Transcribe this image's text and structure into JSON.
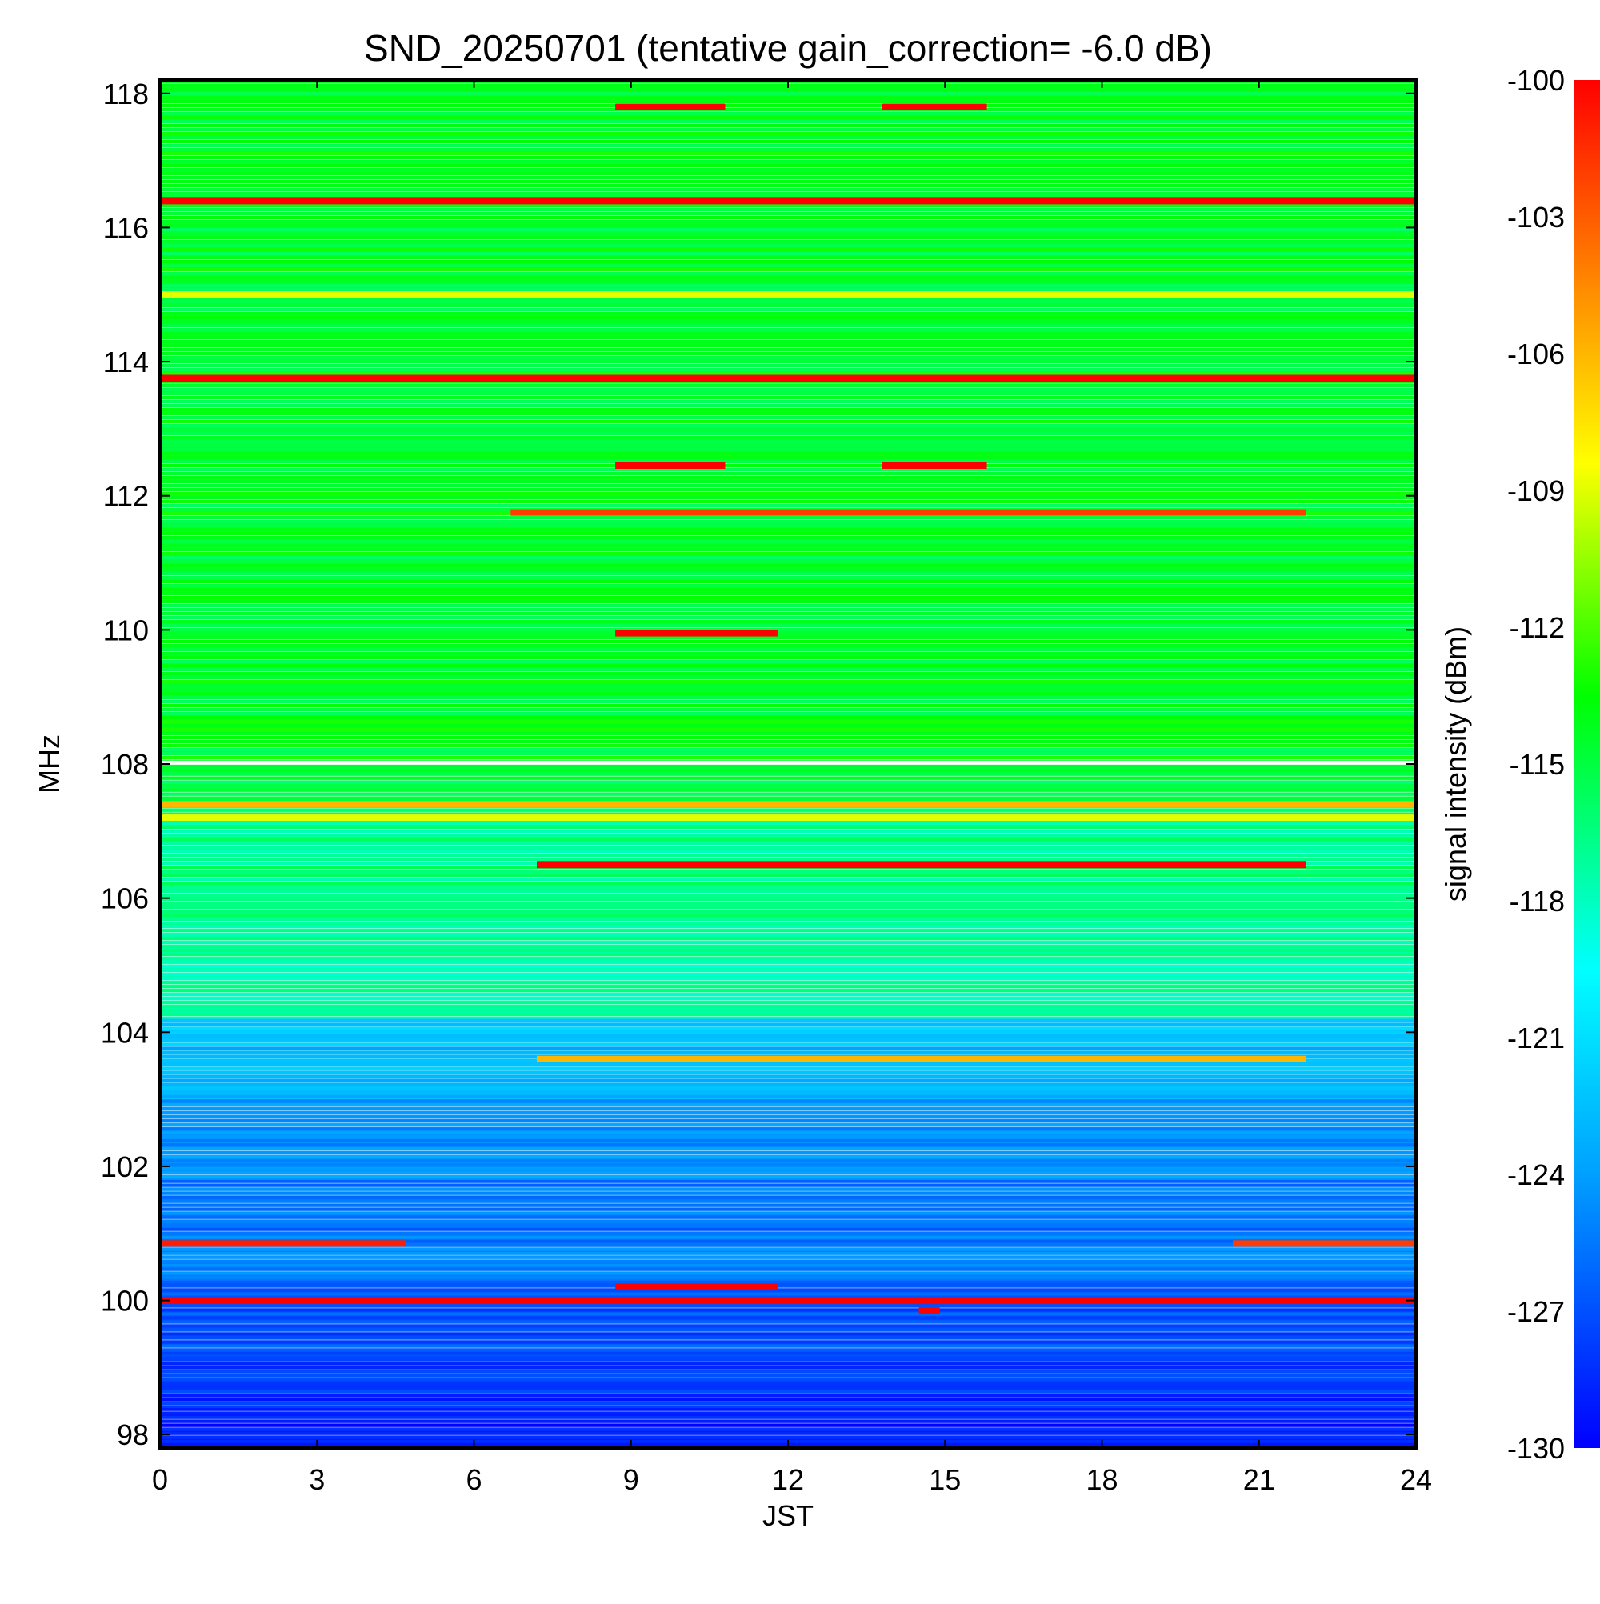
{
  "chart_data": {
    "type": "heatmap",
    "title": "SND_20250701 (tentative gain_correction= -6.0 dB)",
    "xlabel": "JST",
    "ylabel": "MHz",
    "xlim": [
      0,
      24
    ],
    "ylim": [
      97.8,
      118.2
    ],
    "x_ticks": [
      0,
      3,
      6,
      9,
      12,
      15,
      18,
      21,
      24
    ],
    "y_ticks": [
      98,
      100,
      102,
      104,
      106,
      108,
      110,
      112,
      114,
      116,
      118
    ],
    "colorbar": {
      "label": "signal intensity (dBm)",
      "range": [
        -130,
        -100
      ],
      "ticks": [
        -100,
        -103,
        -106,
        -109,
        -112,
        -115,
        -118,
        -121,
        -124,
        -127,
        -130
      ],
      "colormap": [
        "#0000ff",
        "#00a0ff",
        "#00ffff",
        "#00ff00",
        "#ffff00",
        "#ff8000",
        "#ff0000"
      ]
    },
    "background_bands": [
      {
        "freq_range": [
          108.05,
          118.2
        ],
        "level_dBm": -114.5
      },
      {
        "freq_range": [
          107.2,
          108.05
        ],
        "level_dBm": -115.0
      },
      {
        "freq_range": [
          105.6,
          107.2
        ],
        "level_dBm": -116.5
      },
      {
        "freq_range": [
          104.2,
          105.6
        ],
        "level_dBm": -117.5
      },
      {
        "freq_range": [
          103.0,
          104.2
        ],
        "level_dBm": -122.5
      },
      {
        "freq_range": [
          101.8,
          103.0
        ],
        "level_dBm": -124.5
      },
      {
        "freq_range": [
          100.3,
          101.8
        ],
        "level_dBm": -125.5
      },
      {
        "freq_range": [
          99.2,
          100.3
        ],
        "level_dBm": -127.0
      },
      {
        "freq_range": [
          98.4,
          99.2
        ],
        "level_dBm": -128.2
      },
      {
        "freq_range": [
          97.8,
          98.4
        ],
        "level_dBm": -129.3
      }
    ],
    "strong_signals": [
      {
        "freq_MHz": 116.4,
        "start_JST": 0,
        "end_JST": 24,
        "level_dBm": -100
      },
      {
        "freq_MHz": 115.0,
        "start_JST": 0,
        "end_JST": 24,
        "level_dBm": -109
      },
      {
        "freq_MHz": 113.75,
        "start_JST": 0,
        "end_JST": 24,
        "level_dBm": -100
      },
      {
        "freq_MHz": 117.8,
        "start_JST": 8.7,
        "end_JST": 10.8,
        "level_dBm": -100
      },
      {
        "freq_MHz": 117.8,
        "start_JST": 13.8,
        "end_JST": 15.8,
        "level_dBm": -100
      },
      {
        "freq_MHz": 112.45,
        "start_JST": 8.7,
        "end_JST": 10.8,
        "level_dBm": -100
      },
      {
        "freq_MHz": 112.45,
        "start_JST": 13.8,
        "end_JST": 15.8,
        "level_dBm": -100
      },
      {
        "freq_MHz": 111.75,
        "start_JST": 6.7,
        "end_JST": 21.9,
        "level_dBm": -102
      },
      {
        "freq_MHz": 109.95,
        "start_JST": 8.7,
        "end_JST": 11.8,
        "level_dBm": -100
      },
      {
        "freq_MHz": 107.4,
        "start_JST": 0,
        "end_JST": 24,
        "level_dBm": -106
      },
      {
        "freq_MHz": 107.2,
        "start_JST": 0,
        "end_JST": 24,
        "level_dBm": -109
      },
      {
        "freq_MHz": 106.5,
        "start_JST": 7.2,
        "end_JST": 21.9,
        "level_dBm": -100
      },
      {
        "freq_MHz": 103.6,
        "start_JST": 7.2,
        "end_JST": 21.9,
        "level_dBm": -106
      },
      {
        "freq_MHz": 100.85,
        "start_JST": 0,
        "end_JST": 4.7,
        "level_dBm": -101
      },
      {
        "freq_MHz": 100.85,
        "start_JST": 20.5,
        "end_JST": 24,
        "level_dBm": -102
      },
      {
        "freq_MHz": 100.2,
        "start_JST": 8.7,
        "end_JST": 11.8,
        "level_dBm": -100
      },
      {
        "freq_MHz": 100.0,
        "start_JST": 0,
        "end_JST": 24,
        "level_dBm": -100
      },
      {
        "freq_MHz": 99.85,
        "start_JST": 14.5,
        "end_JST": 14.9,
        "level_dBm": -100
      }
    ]
  }
}
